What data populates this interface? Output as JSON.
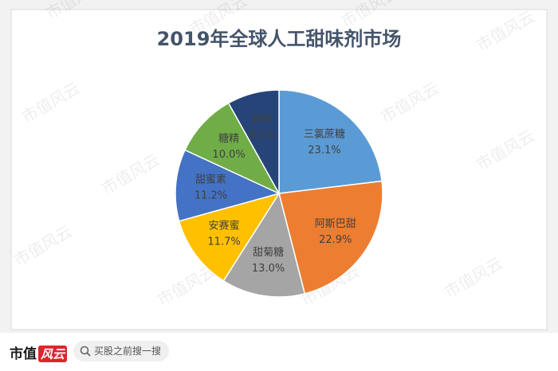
{
  "chart_data": {
    "type": "pie",
    "title": "2019年全球人工甜味剂市场",
    "categories": [
      "三氯蔗糖",
      "阿斯巴甜",
      "甜菊糖",
      "安赛蜜",
      "甜蜜素",
      "糖精",
      "其他"
    ],
    "values": [
      23.1,
      22.9,
      13.0,
      11.7,
      11.2,
      10.0,
      8.1
    ],
    "value_labels": [
      "23.1%",
      "22.9%",
      "13.0%",
      "11.7%",
      "11.2%",
      "10.0%",
      "8.1%"
    ],
    "colors": [
      "#5b9bd5",
      "#ed7d31",
      "#a5a5a5",
      "#ffc000",
      "#4472c4",
      "#70ad47",
      "#264478"
    ]
  },
  "watermark": "市值风云",
  "footer": {
    "logo_main": "市值",
    "logo_accent": "风云",
    "search_placeholder": "买股之前搜一搜"
  }
}
